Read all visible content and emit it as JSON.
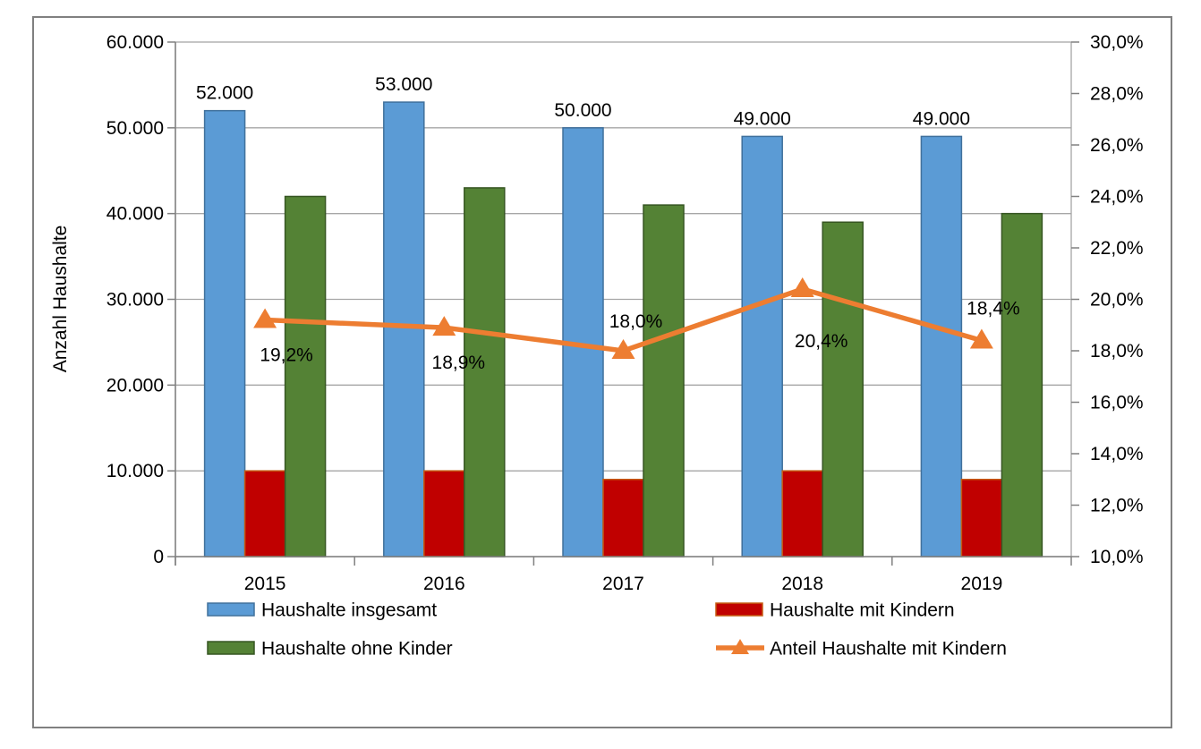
{
  "chart_data": {
    "type": "combo-bar-line",
    "categories": [
      "2015",
      "2016",
      "2017",
      "2018",
      "2019"
    ],
    "series": [
      {
        "name": "Haushalte insgesamt",
        "type": "bar",
        "color": "#5B9BD5",
        "border": "#41719C",
        "values": [
          52000,
          53000,
          50000,
          49000,
          49000
        ],
        "labels": [
          "52.000",
          "53.000",
          "50.000",
          "49.000",
          "49.000"
        ]
      },
      {
        "name": "Haushalte mit Kindern",
        "type": "bar",
        "color": "#C00000",
        "border": "#C55A11",
        "values": [
          10000,
          10000,
          9000,
          10000,
          9000
        ]
      },
      {
        "name": "Haushalte ohne Kinder",
        "type": "bar",
        "color": "#548235",
        "border": "#375623",
        "values": [
          42000,
          43000,
          41000,
          39000,
          40000
        ]
      },
      {
        "name": "Anteil Haushalte mit Kindern",
        "type": "line",
        "color": "#ED7D31",
        "axis": "right",
        "values": [
          19.2,
          18.9,
          18.0,
          20.4,
          18.4
        ],
        "labels": [
          "19,2%",
          "18,9%",
          "18,0%",
          "20,4%",
          "18,4%"
        ],
        "label_offsets": [
          [
            24,
            46
          ],
          [
            16,
            46
          ],
          [
            14,
            -26
          ],
          [
            21,
            65
          ],
          [
            13,
            -29
          ]
        ]
      }
    ],
    "left_axis": {
      "title": "Anzahl Haushalte",
      "min": 0,
      "max": 60000,
      "step": 10000,
      "tick_labels": [
        "0",
        "10.000",
        "20.000",
        "30.000",
        "40.000",
        "50.000",
        "60.000"
      ]
    },
    "right_axis": {
      "min": 10,
      "max": 30,
      "step": 2,
      "tick_labels": [
        "10,0%",
        "12,0%",
        "14,0%",
        "16,0%",
        "18,0%",
        "20,0%",
        "22,0%",
        "24,0%",
        "26,0%",
        "28,0%",
        "30,0%"
      ]
    },
    "grid": true,
    "legend_position": "bottom-two-columns",
    "colors": {
      "axis_line": "#808080",
      "grid_line": "#A6A6A6",
      "plot_border": "#A6A6A6",
      "frame_border": "#808080",
      "text": "#000000",
      "background": "#FFFFFF"
    }
  }
}
